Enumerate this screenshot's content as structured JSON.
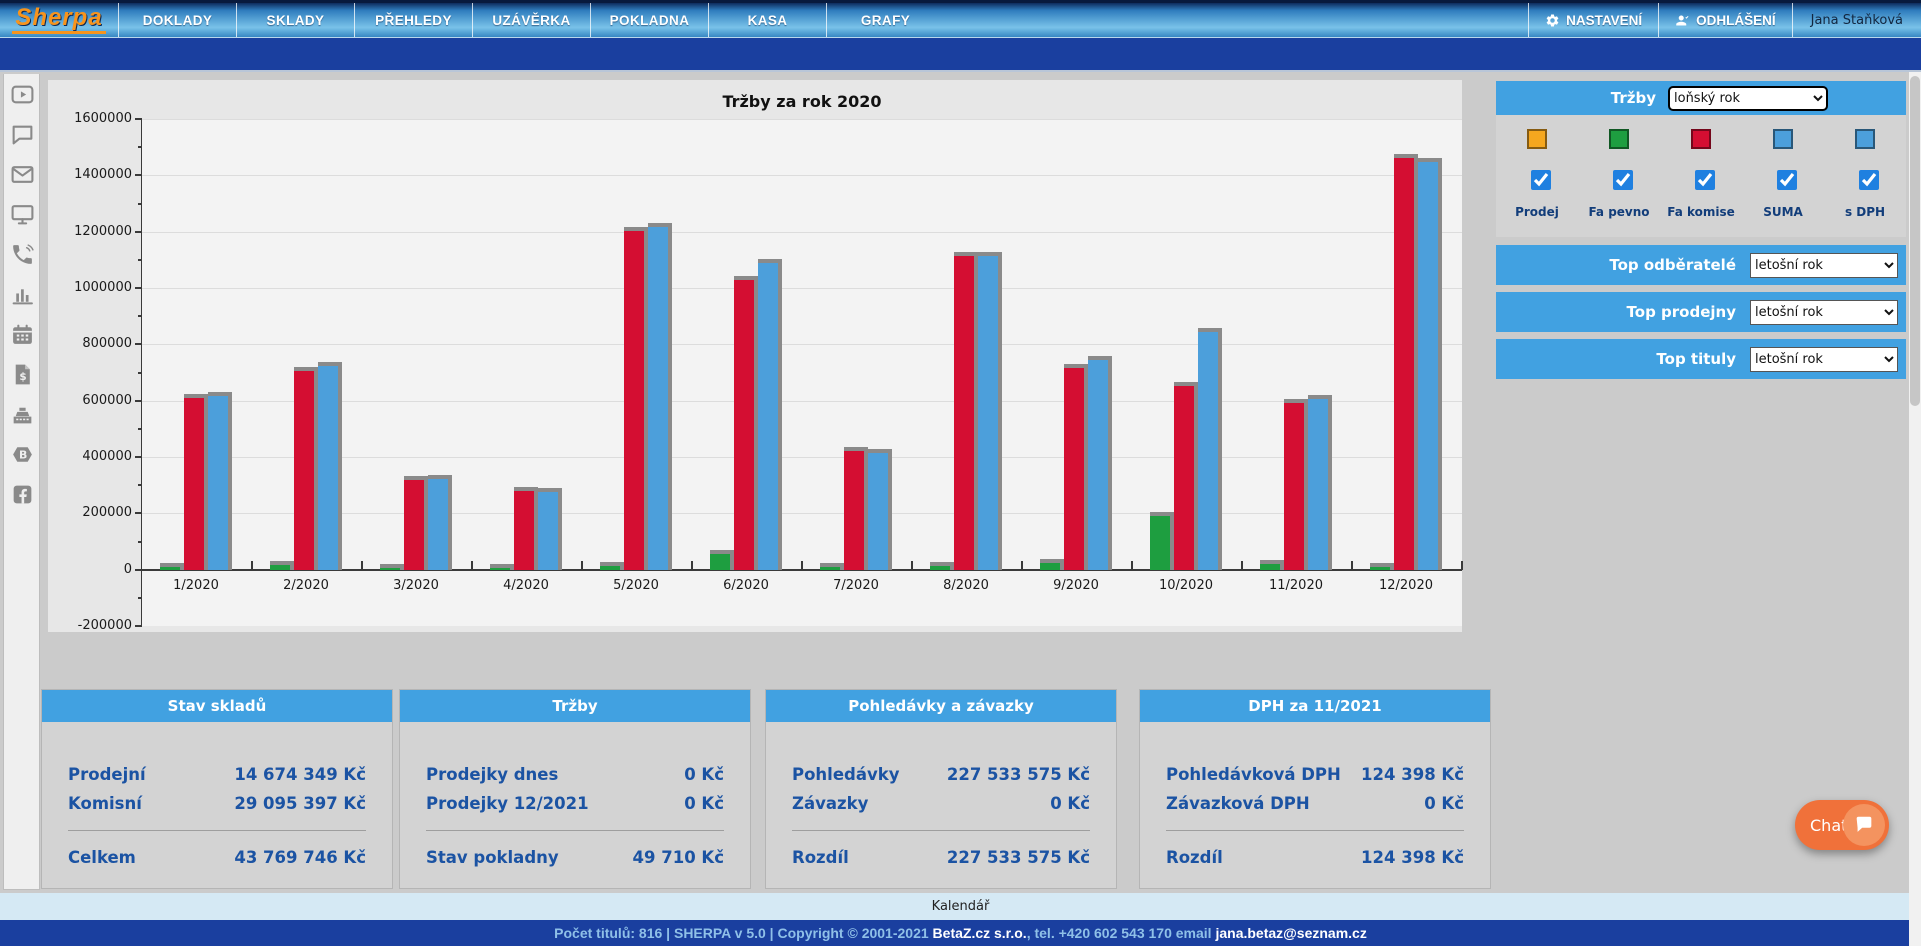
{
  "nav": {
    "logo": "Sherpa",
    "items": [
      "DOKLADY",
      "SKLADY",
      "PŘEHLEDY",
      "UZÁVĚRKA",
      "POKLADNA",
      "KASA",
      "GRAFY"
    ],
    "settings_label": "NASTAVENÍ",
    "logout_label": "ODHLÁŠENÍ",
    "user": "Jana Staňková"
  },
  "sidebar": {
    "icons": [
      "video-icon",
      "chat-icon",
      "mail-icon",
      "monitor-icon",
      "phone-icon",
      "bar-chart-icon",
      "calendar-icon",
      "invoice-icon",
      "cash-register-icon",
      "betaz-icon",
      "facebook-icon"
    ]
  },
  "chart_data": {
    "type": "bar",
    "title": "Tržby za rok 2020",
    "categories": [
      "1/2020",
      "2/2020",
      "3/2020",
      "4/2020",
      "5/2020",
      "6/2020",
      "7/2020",
      "8/2020",
      "9/2020",
      "10/2020",
      "11/2020",
      "12/2020"
    ],
    "series": [
      {
        "name": "Fa pevno",
        "color": "#1e9e40",
        "values": [
          8000,
          15000,
          6000,
          5000,
          12000,
          57000,
          8000,
          12000,
          22000,
          190000,
          20000,
          10000
        ]
      },
      {
        "name": "Fa komise",
        "color": "#d40e32",
        "values": [
          610000,
          705000,
          320000,
          281000,
          1204000,
          1030000,
          420000,
          1112000,
          717000,
          652000,
          591000,
          1461000
        ]
      },
      {
        "name": "SUMA",
        "color": "#4c9fdb",
        "values": [
          616000,
          723000,
          321000,
          274000,
          1215000,
          1087000,
          415000,
          1112000,
          744000,
          844000,
          605000,
          1447000
        ]
      }
    ],
    "ylim": [
      -200000,
      1600000
    ],
    "ytick_step": 200000,
    "grid": true,
    "legend_position": "right-panel"
  },
  "right_panel": {
    "header": {
      "label": "Tržby",
      "select_value": "loňský rok"
    },
    "legend": [
      {
        "label": "Prodej",
        "color": "#f5a71f",
        "checked": true
      },
      {
        "label": "Fa pevno",
        "color": "#1e9e40",
        "checked": true
      },
      {
        "label": "Fa komise",
        "color": "#d40e32",
        "checked": true
      },
      {
        "label": "SUMA",
        "color": "#4c9fdb",
        "checked": true
      },
      {
        "label": "s DPH",
        "color": "#4c9fdb",
        "checked": true
      }
    ],
    "filters": [
      {
        "label": "Top odběratelé",
        "select_value": "letošní rok"
      },
      {
        "label": "Top prodejny",
        "select_value": "letošní rok"
      },
      {
        "label": "Top tituly",
        "select_value": "letošní rok"
      }
    ]
  },
  "panels": [
    {
      "title": "Stav skladů",
      "rows": [
        {
          "label": "Prodejní",
          "value": "14 674 349 Kč"
        },
        {
          "label": "Komisní",
          "value": "29 095 397 Kč"
        }
      ],
      "total": {
        "label": "Celkem",
        "value": "43 769 746 Kč"
      }
    },
    {
      "title": "Tržby",
      "rows": [
        {
          "label": "Prodejky dnes",
          "value": "0 Kč"
        },
        {
          "label": "Prodejky 12/2021",
          "value": "0 Kč"
        }
      ],
      "total": {
        "label": "Stav pokladny",
        "value": "49 710 Kč"
      }
    },
    {
      "title": "Pohledávky a závazky",
      "rows": [
        {
          "label": "Pohledávky",
          "value": "227 533 575 Kč"
        },
        {
          "label": "Závazky",
          "value": "0 Kč"
        }
      ],
      "total": {
        "label": "Rozdíl",
        "value": "227 533 575 Kč"
      }
    },
    {
      "title": "DPH za 11/2021",
      "rows": [
        {
          "label": "Pohledávková DPH",
          "value": "124 398 Kč"
        },
        {
          "label": "Závazková DPH",
          "value": "0 Kč"
        }
      ],
      "total": {
        "label": "Rozdíl",
        "value": "124 398 Kč"
      }
    }
  ],
  "footer": {
    "calendar": "Kalendář",
    "copy1": "Počet titulů: 816 | SHERPA v 5.0 | Copyright © 2001-2021 ",
    "company": "BetaZ.cz s.r.o.",
    "copy2": ", tel. +420 602 543 170 email ",
    "email": "jana.betaz@seznam.cz"
  },
  "chat": {
    "label": "Chat"
  },
  "colors": {
    "accent_blue": "#41a1e1",
    "navy_text": "#1b53a3",
    "dark_bar": "#1a3f9f",
    "chat_orange": "#f0713a"
  }
}
